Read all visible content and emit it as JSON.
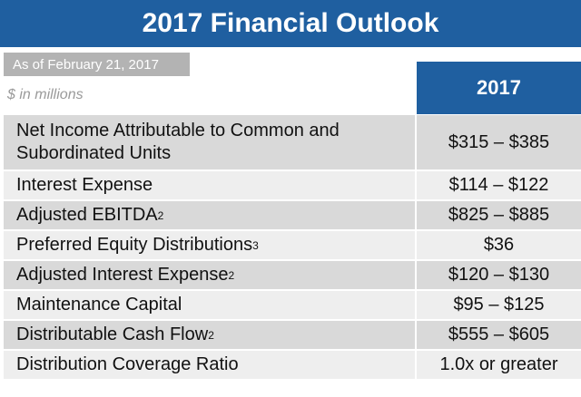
{
  "title": "2017 Financial Outlook",
  "as_of": "As of February 21, 2017",
  "units_note": "$ in millions",
  "column_header": "2017",
  "colors": {
    "header_blue": "#1f5fa0",
    "badge_gray": "#b3b3b3",
    "row_dark": "#d9d9d9",
    "row_light": "#eeeeee"
  },
  "rows": [
    {
      "label": "Net Income Attributable to Common and Subordinated Units",
      "footnote": "",
      "value": "$315 – $385"
    },
    {
      "label": "Interest Expense",
      "footnote": "",
      "value": "$114 – $122"
    },
    {
      "label": "Adjusted EBITDA",
      "footnote": "2",
      "value": "$825 – $885"
    },
    {
      "label": "Preferred Equity Distributions",
      "footnote": "3",
      "value": "$36"
    },
    {
      "label": "Adjusted Interest Expense",
      "footnote": "2",
      "value": "$120 – $130"
    },
    {
      "label": "Maintenance Capital",
      "footnote": "",
      "value": "$95 – $125"
    },
    {
      "label": "Distributable Cash Flow",
      "footnote": "2",
      "value": "$555 – $605"
    },
    {
      "label": "Distribution Coverage Ratio",
      "footnote": "",
      "value": "1.0x or greater"
    }
  ]
}
